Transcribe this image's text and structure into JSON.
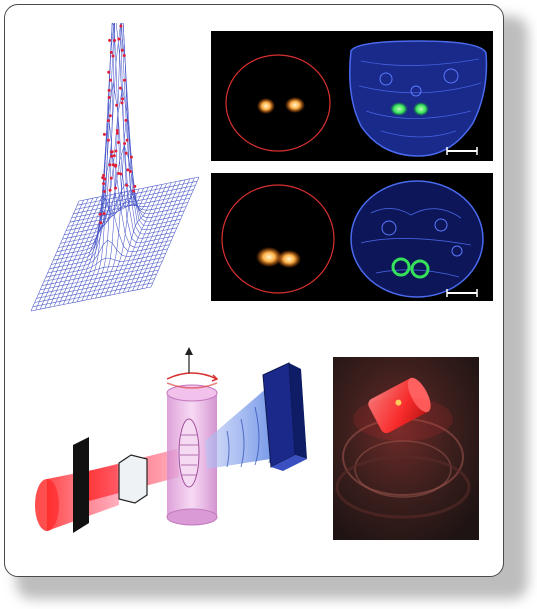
{
  "figure": {
    "panels": [
      {
        "id": "surface-plot",
        "label": ""
      },
      {
        "id": "brain-slice-top",
        "label": ""
      },
      {
        "id": "brain-slice-bottom",
        "label": ""
      },
      {
        "id": "optical-setup",
        "label": ""
      },
      {
        "id": "sample-photo",
        "label": ""
      }
    ],
    "colors": {
      "background": "#ffffff",
      "border": "#4a4a4a",
      "dark_panel": "#000000",
      "fluor_orange": "#ffb24a",
      "fluor_green": "#35e05a",
      "tissue_blue": "#3f57d8",
      "laser_red": "#ff3b3b",
      "cylinder_pink": "#e8a6e0",
      "detector_navy": "#1b2a8a"
    },
    "icons": {
      "rotation_arrow": "rotation-arrow-icon",
      "up_arrow": "up-arrow-icon",
      "scale_bar": "scale-bar-icon"
    }
  }
}
